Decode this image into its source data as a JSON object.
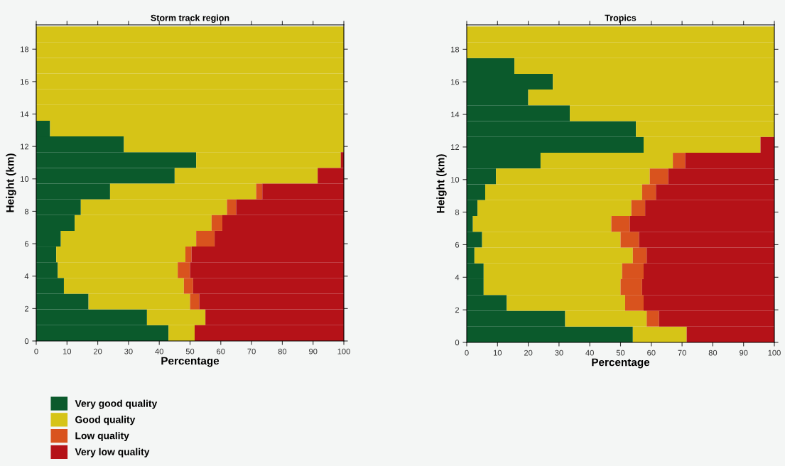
{
  "chart_data": [
    {
      "type": "bar",
      "orientation": "horizontal",
      "stacked": true,
      "title": "Storm track region",
      "xlabel": "Percentage",
      "ylabel": "Height (km)",
      "x": [
        0.49,
        1.46,
        2.43,
        3.4,
        4.37,
        5.34,
        6.31,
        7.28,
        8.25,
        9.22,
        10.19,
        11.16,
        12.13,
        13.1,
        14.07,
        15.04,
        16.01,
        16.98,
        17.95,
        18.92
      ],
      "xlim": [
        0,
        100
      ],
      "xticks": [
        0,
        10,
        20,
        30,
        40,
        50,
        60,
        70,
        80,
        90,
        100
      ],
      "ylim": [
        0,
        19.5
      ],
      "yticks": [
        0,
        2,
        4,
        6,
        8,
        10,
        12,
        14,
        16,
        18
      ],
      "grid": false,
      "legend": "bottom left",
      "series": [
        {
          "name": "Very good quality",
          "color": "#0b5a2c",
          "values": [
            43,
            36,
            17,
            9,
            7,
            6.5,
            8,
            12.5,
            14.5,
            24,
            45,
            52,
            28.5,
            4.5,
            0,
            0,
            0,
            0,
            0,
            0
          ]
        },
        {
          "name": "Good quality",
          "color": "#d6c417",
          "values": [
            8.5,
            19,
            33,
            39,
            39,
            42,
            44,
            44.5,
            47.5,
            47.5,
            46.5,
            47,
            71.5,
            95.5,
            100,
            100,
            100,
            100,
            100,
            100
          ]
        },
        {
          "name": "Low quality",
          "color": "#d9531e",
          "values": [
            0,
            0,
            3,
            3,
            4,
            2,
            6,
            3.5,
            3,
            2,
            0,
            0,
            0,
            0,
            0,
            0,
            0,
            0,
            0,
            0
          ]
        },
        {
          "name": "Very low quality",
          "color": "#b51218",
          "values": [
            48.5,
            45,
            47,
            49,
            50,
            49.5,
            42,
            39.5,
            35,
            26.5,
            8.5,
            1,
            0,
            0,
            0,
            0,
            0,
            0,
            0,
            0
          ]
        }
      ]
    },
    {
      "type": "bar",
      "orientation": "horizontal",
      "stacked": true,
      "title": "Tropics",
      "xlabel": "Percentage",
      "ylabel": "Height (km)",
      "x": [
        0.49,
        1.46,
        2.43,
        3.4,
        4.37,
        5.34,
        6.31,
        7.28,
        8.25,
        9.22,
        10.19,
        11.16,
        12.13,
        13.1,
        14.07,
        15.04,
        16.01,
        16.98,
        17.95,
        18.92
      ],
      "xlim": [
        0,
        100
      ],
      "xticks": [
        0,
        10,
        20,
        30,
        40,
        50,
        60,
        70,
        80,
        90,
        100
      ],
      "ylim": [
        0,
        19.5
      ],
      "yticks": [
        0,
        2,
        4,
        6,
        8,
        10,
        12,
        14,
        16,
        18
      ],
      "grid": false,
      "series": [
        {
          "color": "#0b5a2c",
          "values": [
            54,
            32,
            13,
            5.5,
            5.5,
            2.5,
            5,
            2,
            3.5,
            6,
            9.5,
            24,
            57.5,
            55,
            33.5,
            20,
            28,
            15.5,
            0,
            0
          ]
        },
        {
          "color": "#d6c417",
          "values": [
            17.5,
            26.5,
            38.5,
            44.5,
            45,
            51.5,
            45,
            45,
            50,
            51,
            50,
            43,
            38,
            45,
            66.5,
            80,
            72,
            84.5,
            100,
            100
          ]
        },
        {
          "color": "#d9531e",
          "values": [
            0,
            4,
            6,
            7,
            7,
            4.5,
            6,
            6,
            4.5,
            4.5,
            6,
            4,
            0,
            0,
            0,
            0,
            0,
            0,
            0,
            0
          ]
        },
        {
          "color": "#b51218",
          "values": [
            28.5,
            37.5,
            42.5,
            43,
            42.5,
            41.5,
            44,
            47,
            42,
            38.5,
            34.5,
            29,
            4.5,
            0,
            0,
            0,
            0,
            0,
            0,
            0
          ]
        }
      ]
    }
  ]
}
